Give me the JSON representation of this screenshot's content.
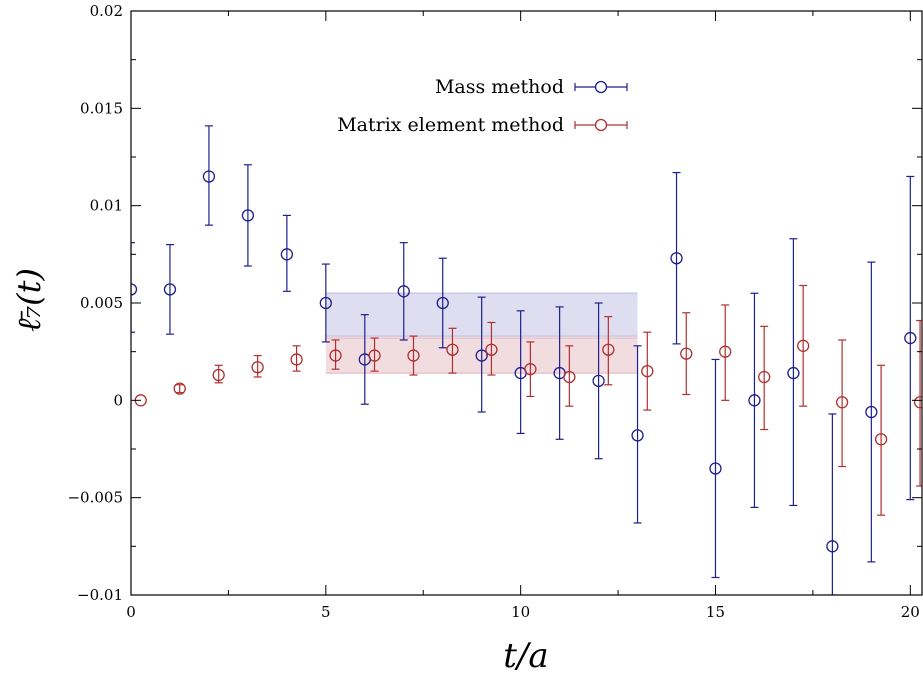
{
  "chart_data": {
    "type": "scatter",
    "title": "",
    "xlabel": "t/a",
    "ylabel": "ℓ̄₇(t)",
    "xlim": [
      0,
      20.3
    ],
    "ylim": [
      -0.01,
      0.02
    ],
    "x_ticks": [
      0,
      5,
      10,
      15,
      20
    ],
    "x_tick_labels": [
      "0",
      "5",
      "10",
      "15",
      "20"
    ],
    "y_ticks": [
      -0.01,
      -0.005,
      0,
      0.005,
      0.01,
      0.015,
      0.02
    ],
    "y_tick_labels": [
      "−0.01",
      "−0.005",
      "0",
      "0.005",
      "0.01",
      "0.015",
      "0.02"
    ],
    "grid": false,
    "legend_position": "top-center",
    "series": [
      {
        "name": "Mass method",
        "color": "#1f1f8f",
        "marker": "open-circle",
        "points": [
          {
            "x": 0,
            "y": 0.0057,
            "err_lo": 0.0035,
            "err_hi": 0.0081
          },
          {
            "x": 1,
            "y": 0.0057,
            "err_lo": 0.0034,
            "err_hi": 0.008
          },
          {
            "x": 2,
            "y": 0.0115,
            "err_lo": 0.009,
            "err_hi": 0.0141
          },
          {
            "x": 3,
            "y": 0.0095,
            "err_lo": 0.0069,
            "err_hi": 0.0121
          },
          {
            "x": 4,
            "y": 0.0075,
            "err_lo": 0.0056,
            "err_hi": 0.0095
          },
          {
            "x": 5,
            "y": 0.005,
            "err_lo": 0.003,
            "err_hi": 0.007
          },
          {
            "x": 6,
            "y": 0.0021,
            "err_lo": -0.0002,
            "err_hi": 0.0044
          },
          {
            "x": 7,
            "y": 0.0056,
            "err_lo": 0.0031,
            "err_hi": 0.0081
          },
          {
            "x": 8,
            "y": 0.005,
            "err_lo": 0.0027,
            "err_hi": 0.0073
          },
          {
            "x": 9,
            "y": 0.0023,
            "err_lo": -0.0006,
            "err_hi": 0.0053
          },
          {
            "x": 10,
            "y": 0.0014,
            "err_lo": -0.0017,
            "err_hi": 0.0046
          },
          {
            "x": 11,
            "y": 0.0014,
            "err_lo": -0.002,
            "err_hi": 0.0048
          },
          {
            "x": 12,
            "y": 0.001,
            "err_lo": -0.003,
            "err_hi": 0.005
          },
          {
            "x": 13,
            "y": -0.0018,
            "err_lo": -0.0063,
            "err_hi": 0.0028
          },
          {
            "x": 14,
            "y": 0.0073,
            "err_lo": 0.0029,
            "err_hi": 0.0117
          },
          {
            "x": 15,
            "y": -0.0035,
            "err_lo": -0.0091,
            "err_hi": 0.0021
          },
          {
            "x": 16,
            "y": 0.0,
            "err_lo": -0.0055,
            "err_hi": 0.0055
          },
          {
            "x": 17,
            "y": 0.0014,
            "err_lo": -0.0054,
            "err_hi": 0.0083
          },
          {
            "x": 18,
            "y": -0.0075,
            "err_lo": -0.01,
            "err_hi": -0.0007
          },
          {
            "x": 19,
            "y": -0.0006,
            "err_lo": -0.0083,
            "err_hi": 0.0071
          },
          {
            "x": 20,
            "y": 0.0032,
            "err_lo": -0.0051,
            "err_hi": 0.0115
          }
        ]
      },
      {
        "name": "Matrix element method",
        "color": "#b03030",
        "marker": "open-circle",
        "points": [
          {
            "x": 0.25,
            "y": 0.0,
            "err_lo": 0.0,
            "err_hi": 0.0
          },
          {
            "x": 1.25,
            "y": 0.0006,
            "err_lo": 0.0004,
            "err_hi": 0.0008
          },
          {
            "x": 2.25,
            "y": 0.0013,
            "err_lo": 0.0009,
            "err_hi": 0.0018
          },
          {
            "x": 3.25,
            "y": 0.0017,
            "err_lo": 0.0012,
            "err_hi": 0.0023
          },
          {
            "x": 4.25,
            "y": 0.0021,
            "err_lo": 0.0015,
            "err_hi": 0.0028
          },
          {
            "x": 5.25,
            "y": 0.0023,
            "err_lo": 0.0016,
            "err_hi": 0.0031
          },
          {
            "x": 6.25,
            "y": 0.0023,
            "err_lo": 0.0015,
            "err_hi": 0.0032
          },
          {
            "x": 7.25,
            "y": 0.0023,
            "err_lo": 0.0013,
            "err_hi": 0.0033
          },
          {
            "x": 8.25,
            "y": 0.0026,
            "err_lo": 0.0014,
            "err_hi": 0.0037
          },
          {
            "x": 9.25,
            "y": 0.0026,
            "err_lo": 0.0013,
            "err_hi": 0.004
          },
          {
            "x": 10.25,
            "y": 0.0016,
            "err_lo": 0.0002,
            "err_hi": 0.003
          },
          {
            "x": 11.25,
            "y": 0.0012,
            "err_lo": -0.0003,
            "err_hi": 0.0028
          },
          {
            "x": 12.25,
            "y": 0.0026,
            "err_lo": 0.0008,
            "err_hi": 0.0043
          },
          {
            "x": 13.25,
            "y": 0.0015,
            "err_lo": -0.0005,
            "err_hi": 0.0035
          },
          {
            "x": 14.25,
            "y": 0.0024,
            "err_lo": 0.0003,
            "err_hi": 0.0045
          },
          {
            "x": 15.25,
            "y": 0.0025,
            "err_lo": 0.0,
            "err_hi": 0.0049
          },
          {
            "x": 16.25,
            "y": 0.0012,
            "err_lo": -0.0015,
            "err_hi": 0.0038
          },
          {
            "x": 17.25,
            "y": 0.0028,
            "err_lo": -0.0003,
            "err_hi": 0.0059
          },
          {
            "x": 18.25,
            "y": -0.0001,
            "err_lo": -0.0034,
            "err_hi": 0.0031
          },
          {
            "x": 19.25,
            "y": -0.002,
            "err_lo": -0.0059,
            "err_hi": 0.0018
          },
          {
            "x": 20.25,
            "y": -0.0001,
            "err_lo": -0.0044,
            "err_hi": 0.0041
          }
        ]
      }
    ],
    "bands": [
      {
        "series": "Mass method",
        "x_range": [
          5,
          13
        ],
        "y_range": [
          0.0033,
          0.0055
        ],
        "color": "#c8c8e6"
      },
      {
        "series": "Matrix element method",
        "x_range": [
          5,
          13
        ],
        "y_range": [
          0.0014,
          0.0032
        ],
        "color": "#e8c4cc"
      }
    ]
  }
}
